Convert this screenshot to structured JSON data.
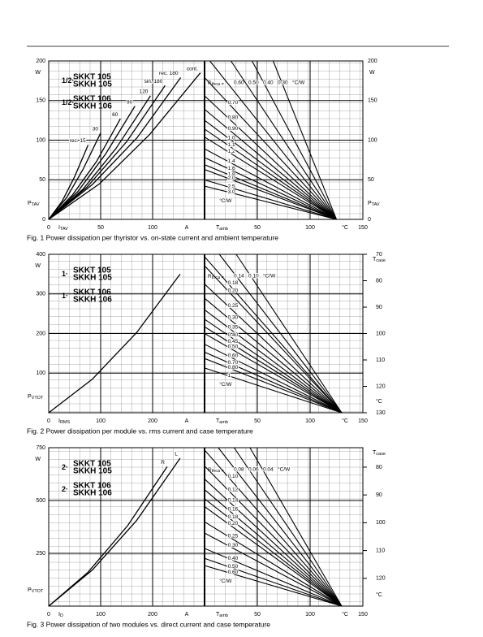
{
  "chart_data": [
    {
      "type": "line",
      "title": "Fig. 1  Power dissipation per thyristor vs. on-state current and ambient temperature",
      "device_prefix": "1/2·",
      "devices": [
        [
          "SKKT 105",
          "SKKH 105"
        ],
        [
          "SKKT 106",
          "SKKH 106"
        ]
      ],
      "y_label": "P",
      "y_label_sub": "TAV",
      "y_unit": "W",
      "x_label": "I",
      "x_label_sub": "TAV",
      "x_unit": "A",
      "xlim": [
        0,
        150
      ],
      "xticks": [
        0,
        50,
        100
      ],
      "ylim": [
        0,
        200
      ],
      "yticks": [
        0,
        50,
        100,
        150,
        200
      ],
      "temp_label": "T",
      "temp_label_sub": "amb",
      "temp_unit": "°C",
      "templim": [
        0,
        150
      ],
      "tempticks": [
        50,
        100,
        150
      ],
      "rth_label": "R",
      "rth_label_sub": "thca =",
      "rth_unit": "°C/W",
      "series": [
        {
          "name": "rec. 15",
          "x": [
            0,
            13,
            25,
            38
          ],
          "values": [
            0,
            23,
            54,
            94
          ]
        },
        {
          "name": "30",
          "x": [
            0,
            17,
            33,
            50
          ],
          "values": [
            0,
            27,
            63,
            109
          ]
        },
        {
          "name": "60",
          "x": [
            0,
            23,
            46,
            69
          ],
          "values": [
            0,
            31,
            73,
            127
          ]
        },
        {
          "name": "90",
          "x": [
            0,
            28,
            55,
            83
          ],
          "values": [
            0,
            35,
            83,
            143
          ]
        },
        {
          "name": "120",
          "x": [
            0,
            33,
            65,
            98
          ],
          "values": [
            0,
            38,
            90,
            156
          ]
        },
        {
          "name": "sin. 180",
          "x": [
            0,
            37,
            75,
            112
          ],
          "values": [
            0,
            41,
            98,
            169
          ]
        },
        {
          "name": "rec. 180",
          "x": [
            0,
            42,
            85,
            127
          ],
          "values": [
            0,
            44,
            103,
            179
          ]
        },
        {
          "name": "cont.",
          "x": [
            0,
            49,
            97,
            146
          ],
          "values": [
            0,
            45,
            107,
            185
          ]
        }
      ],
      "rth_series": [
        {
          "name": "0.60",
          "x": [
            5,
            125
          ],
          "values": [
            200,
            0
          ]
        },
        {
          "name": "0.50",
          "x": [
            25,
            125
          ],
          "values": [
            200,
            0
          ]
        },
        {
          "name": "0.40",
          "x": [
            45,
            125
          ],
          "values": [
            200,
            0
          ]
        },
        {
          "name": "0.30",
          "x": [
            65,
            125
          ],
          "values": [
            200,
            0
          ]
        },
        {
          "name": "0.70",
          "x": [
            0,
            125
          ],
          "values": [
            179,
            0
          ]
        },
        {
          "name": "0.80",
          "x": [
            0,
            125
          ],
          "values": [
            156,
            0
          ]
        },
        {
          "name": "0.90",
          "x": [
            0,
            125
          ],
          "values": [
            139,
            0
          ]
        },
        {
          "name": "1.0",
          "x": [
            0,
            125
          ],
          "values": [
            125,
            0
          ]
        },
        {
          "name": "1.1",
          "x": [
            0,
            125
          ],
          "values": [
            114,
            0
          ]
        },
        {
          "name": "1.2",
          "x": [
            0,
            125
          ],
          "values": [
            104,
            0
          ]
        },
        {
          "name": "1.4",
          "x": [
            0,
            125
          ],
          "values": [
            89,
            0
          ]
        },
        {
          "name": "1.6",
          "x": [
            0,
            125
          ],
          "values": [
            78,
            0
          ]
        },
        {
          "name": "1.8",
          "x": [
            0,
            125
          ],
          "values": [
            69,
            0
          ]
        },
        {
          "name": "2.0",
          "x": [
            0,
            125
          ],
          "values": [
            63,
            0
          ]
        },
        {
          "name": "2.5",
          "x": [
            0,
            125
          ],
          "values": [
            50,
            0
          ]
        },
        {
          "name": "3.0",
          "x": [
            0,
            125
          ],
          "values": [
            42,
            0
          ]
        }
      ]
    },
    {
      "type": "line",
      "title": "Fig. 2  Power dissipation per module vs. rms current and case temperature",
      "device_prefix": "1·",
      "devices": [
        [
          "SKKT 105",
          "SKKH 105"
        ],
        [
          "SKKT 106",
          "SKKH 106"
        ]
      ],
      "y_label": "P",
      "y_label_sub": "VTOT",
      "y_unit": "W",
      "x_label": "I",
      "x_label_sub": "RMS",
      "x_unit": "A",
      "xlim": [
        0,
        300
      ],
      "xticks": [
        0,
        100,
        200
      ],
      "ylim": [
        0,
        400
      ],
      "yticks": [
        100,
        200,
        300,
        400
      ],
      "y2_label": "T",
      "y2_label_sub": "case",
      "y2_unit": "°C",
      "y2lim": [
        130,
        70
      ],
      "y2ticks": [
        70,
        80,
        90,
        100,
        110,
        120,
        130
      ],
      "temp_label": "T",
      "temp_label_sub": "amb",
      "temp_unit": "°C",
      "templim": [
        0,
        150
      ],
      "tempticks": [
        50,
        100,
        150
      ],
      "rth_label": "R",
      "rth_label_sub": "thca =",
      "rth_unit": "°C/W",
      "series": [
        {
          "x": [
            0,
            84,
            169,
            253
          ],
          "values": [
            0,
            85,
            202,
            350
          ]
        }
      ],
      "rth_series": [
        {
          "name": "0.14",
          "x": [
            14,
            130
          ],
          "values": [
            400,
            0
          ]
        },
        {
          "name": "0.10",
          "x": [
            30,
            130
          ],
          "values": [
            400,
            0
          ]
        },
        {
          "name": "0.18",
          "x": [
            0,
            130
          ],
          "values": [
            394,
            0
          ]
        },
        {
          "name": "0.20",
          "x": [
            0,
            130
          ],
          "values": [
            371,
            0
          ]
        },
        {
          "name": "0.25",
          "x": [
            0,
            130
          ],
          "values": [
            325,
            0
          ]
        },
        {
          "name": "0.30",
          "x": [
            0,
            130
          ],
          "values": [
            289,
            0
          ]
        },
        {
          "name": "0.35",
          "x": [
            0,
            130
          ],
          "values": [
            260,
            0
          ]
        },
        {
          "name": "0.40",
          "x": [
            0,
            130
          ],
          "values": [
            236,
            0
          ]
        },
        {
          "name": "0.45",
          "x": [
            0,
            130
          ],
          "values": [
            217,
            0
          ]
        },
        {
          "name": "0.50",
          "x": [
            0,
            130
          ],
          "values": [
            200,
            0
          ]
        },
        {
          "name": "0.60",
          "x": [
            0,
            130
          ],
          "values": [
            173,
            0
          ]
        },
        {
          "name": "0.70",
          "x": [
            0,
            130
          ],
          "values": [
            153,
            0
          ]
        },
        {
          "name": "0.80",
          "x": [
            0,
            130
          ],
          "values": [
            137,
            0
          ]
        },
        {
          "name": "1",
          "x": [
            0,
            130
          ],
          "values": [
            113,
            0
          ]
        }
      ]
    },
    {
      "type": "line",
      "title": "Fig. 3  Power dissipation of two modules vs. direct current and case temperature",
      "device_prefix": "2·",
      "devices": [
        [
          "SKKT 105",
          "SKKH 105"
        ],
        [
          "SKKT 106",
          "SKKH 106"
        ]
      ],
      "y_label": "P",
      "y_label_sub": "VTOT",
      "y_unit": "W",
      "x_label": "I",
      "x_label_sub": "D",
      "x_unit": "A",
      "xlim": [
        0,
        300
      ],
      "xticks": [
        0,
        100,
        200
      ],
      "ylim": [
        0,
        750
      ],
      "yticks": [
        250,
        500,
        750
      ],
      "y2_label": "T",
      "y2_label_sub": "case",
      "y2_unit": "°C",
      "y2lim": [
        130,
        73
      ],
      "y2ticks": [
        80,
        90,
        100,
        110,
        120
      ],
      "temp_label": "T",
      "temp_label_sub": "amb",
      "temp_unit": "°C",
      "templim": [
        0,
        150
      ],
      "tempticks": [
        50,
        100,
        150
      ],
      "rth_label": "R",
      "rth_label_sub": "thca =",
      "rth_unit": "°C/W",
      "series": [
        {
          "name": "R",
          "x": [
            0,
            76,
            152,
            228
          ],
          "values": [
            0,
            161,
            381,
            660
          ]
        },
        {
          "name": "L",
          "x": [
            0,
            84,
            169,
            253
          ],
          "values": [
            0,
            171,
            405,
            700
          ]
        }
      ],
      "rth_series": [
        {
          "name": "0.08",
          "x": [
            13,
            130
          ],
          "values": [
            750,
            0
          ]
        },
        {
          "name": "0.06",
          "x": [
            28,
            130
          ],
          "values": [
            750,
            0
          ]
        },
        {
          "name": "0.04",
          "x": [
            43,
            130
          ],
          "values": [
            750,
            0
          ]
        },
        {
          "name": "0.10",
          "x": [
            0,
            130
          ],
          "values": [
            739,
            0
          ]
        },
        {
          "name": "0.12",
          "x": [
            0,
            130
          ],
          "values": [
            663,
            0
          ]
        },
        {
          "name": "0.14",
          "x": [
            0,
            130
          ],
          "values": [
            602,
            0
          ]
        },
        {
          "name": "0.16",
          "x": [
            0,
            130
          ],
          "values": [
            551,
            0
          ]
        },
        {
          "name": "0.18",
          "x": [
            0,
            130
          ],
          "values": [
            508,
            0
          ]
        },
        {
          "name": "0.20",
          "x": [
            0,
            130
          ],
          "values": [
            471,
            0
          ]
        },
        {
          "name": "0.25",
          "x": [
            0,
            130
          ],
          "values": [
            399,
            0
          ]
        },
        {
          "name": "0.30",
          "x": [
            0,
            130
          ],
          "values": [
            346,
            0
          ]
        },
        {
          "name": "0.40",
          "x": [
            0,
            130
          ],
          "values": [
            273,
            0
          ]
        },
        {
          "name": "0.50",
          "x": [
            0,
            130
          ],
          "values": [
            226,
            0
          ]
        },
        {
          "name": "0.60",
          "x": [
            0,
            130
          ],
          "values": [
            192,
            0
          ]
        }
      ]
    }
  ]
}
